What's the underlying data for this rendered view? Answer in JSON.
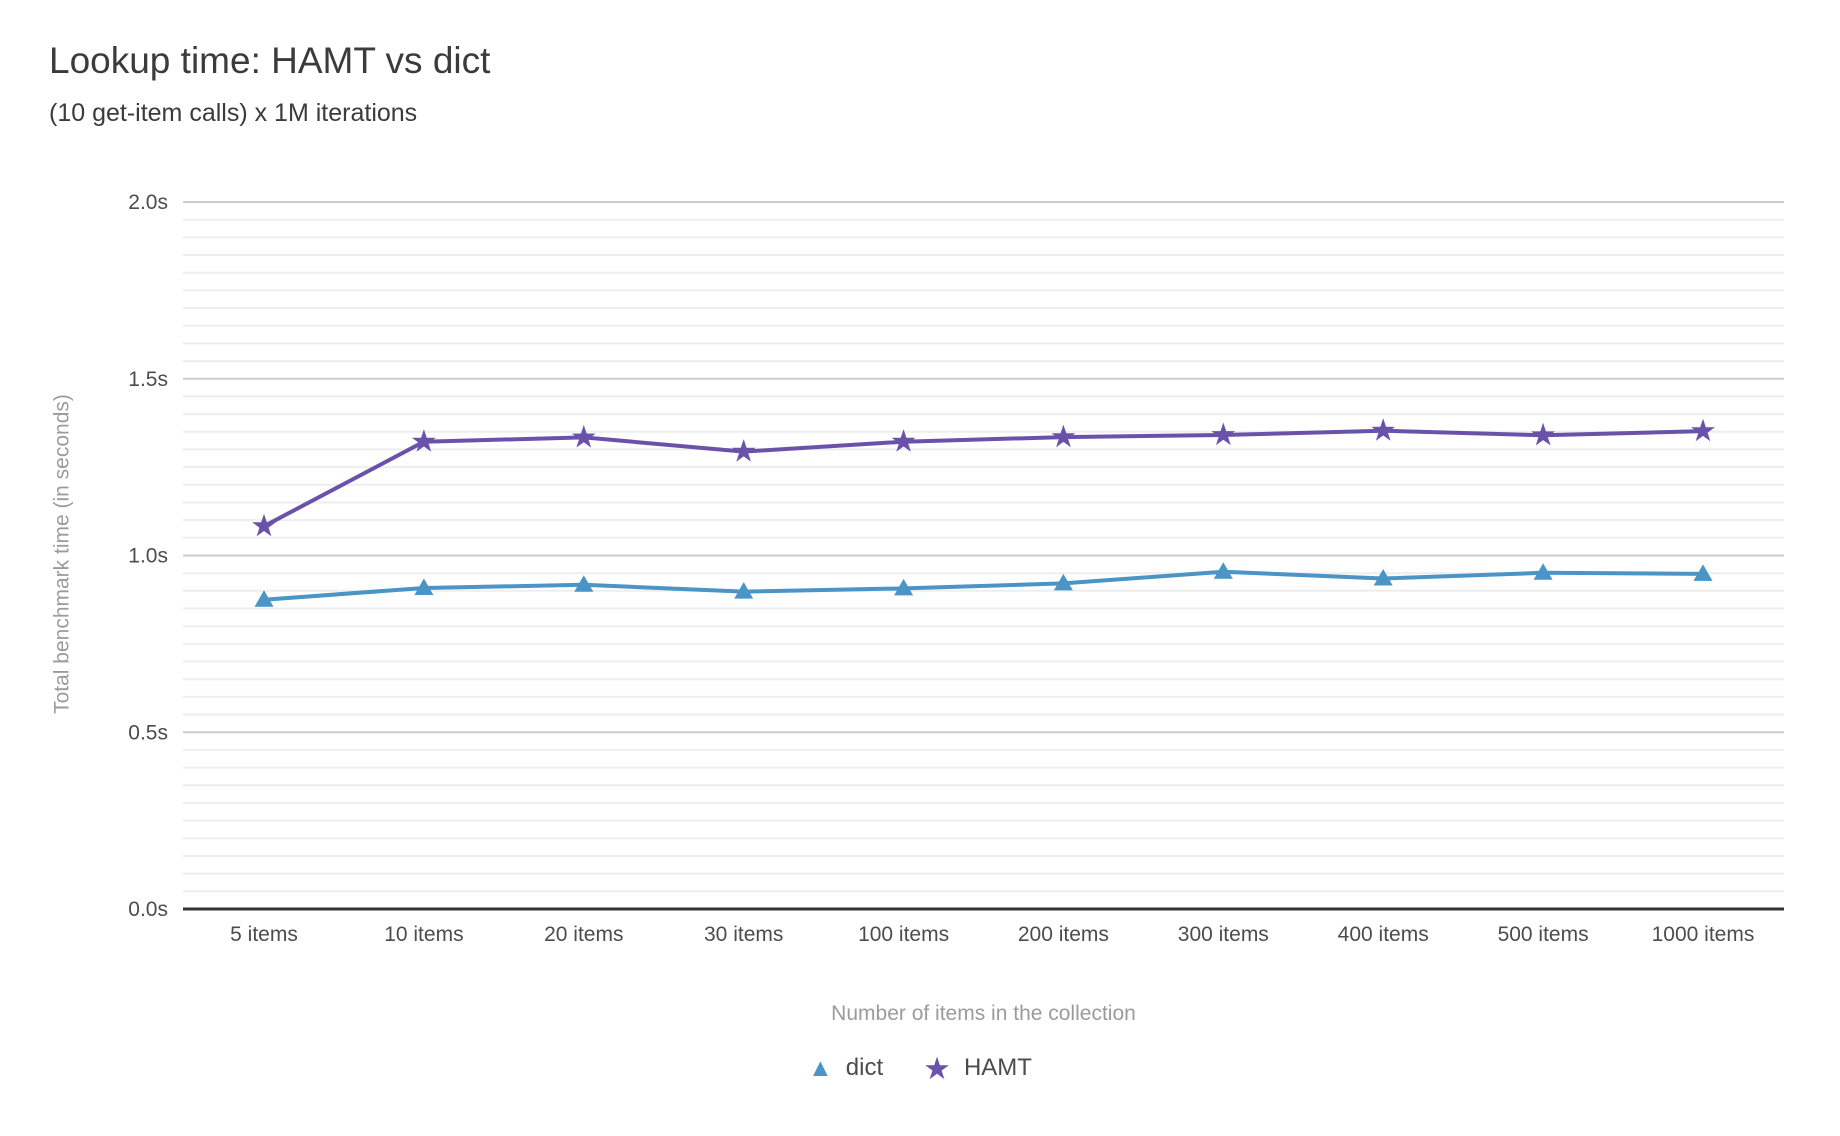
{
  "header": {
    "title": "Lookup time: HAMT vs dict",
    "subtitle": "(10 get-item calls) x 1M iterations"
  },
  "chart_data": {
    "type": "line",
    "title": "Lookup time: HAMT vs dict",
    "subtitle": "(10 get-item calls) x 1M iterations",
    "xlabel": "Number of items in the collection",
    "ylabel": "Total benchmark time (in seconds)",
    "categories": [
      "5 items",
      "10 items",
      "20 items",
      "30 items",
      "100 items",
      "200 items",
      "300 items",
      "400 items",
      "500 items",
      "1000 items"
    ],
    "series": [
      {
        "name": "dict",
        "marker": "triangle",
        "legend_glyph": "▲",
        "color": "#4a94c6",
        "values": [
          0.875,
          0.908,
          0.917,
          0.898,
          0.907,
          0.921,
          0.954,
          0.935,
          0.951,
          0.948
        ]
      },
      {
        "name": "HAMT",
        "marker": "star",
        "legend_glyph": "★",
        "color": "#6a52ab",
        "values": [
          1.083,
          1.322,
          1.334,
          1.294,
          1.322,
          1.335,
          1.341,
          1.353,
          1.34,
          1.352
        ]
      }
    ],
    "ylim": [
      0,
      2.0
    ],
    "yticks": [
      {
        "value": 2.0,
        "label": "2.0s"
      },
      {
        "value": 1.5,
        "label": "1.5s"
      },
      {
        "value": 1.0,
        "label": "1.0s"
      },
      {
        "value": 0.5,
        "label": "0.5s"
      },
      {
        "value": 0.0,
        "label": "0.0s"
      }
    ],
    "minor_tick_step": 0.05,
    "grid": true,
    "legend_position": "bottom",
    "colors": {
      "axis": "#333333",
      "major_grid": "#cccccc",
      "minor_grid": "#eeeeee",
      "tick_label": "#4c4c4c",
      "axis_title": "#9b9b9b",
      "title_text": "#3b3b3b"
    }
  }
}
